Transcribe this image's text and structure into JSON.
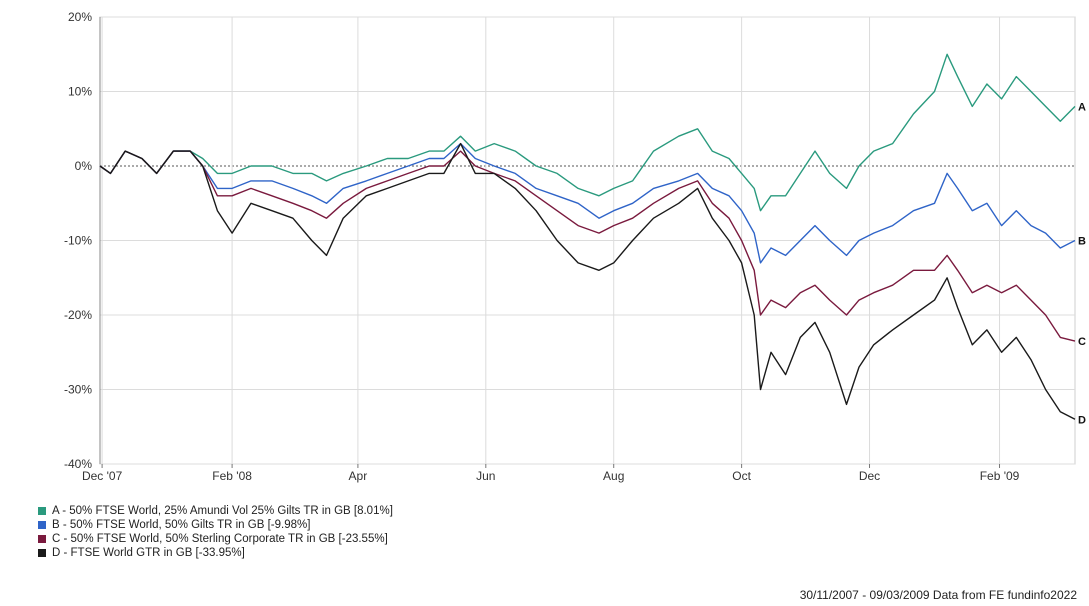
{
  "chart_data": {
    "type": "line",
    "ylim": [
      -40,
      20
    ],
    "y_ticks": [
      20,
      10,
      0,
      -10,
      -20,
      -30,
      -40
    ],
    "y_tick_labels": [
      "20%",
      "10%",
      "0%",
      "-10%",
      "-20%",
      "-30%",
      "-40%"
    ],
    "x_range": [
      "2007-11-30",
      "2009-03-09"
    ],
    "x_ticks": [
      {
        "label": "Dec '07",
        "date": "2007-12-01"
      },
      {
        "label": "Feb '08",
        "date": "2008-02-01"
      },
      {
        "label": "Apr",
        "date": "2008-04-01"
      },
      {
        "label": "Jun",
        "date": "2008-06-01"
      },
      {
        "label": "Aug",
        "date": "2008-08-01"
      },
      {
        "label": "Oct",
        "date": "2008-10-01"
      },
      {
        "label": "Dec",
        "date": "2008-12-01"
      },
      {
        "label": "Feb '09",
        "date": "2009-02-01"
      }
    ],
    "grid": true,
    "zero_line": true,
    "series": [
      {
        "name": "A - 50% FTSE World, 25% Amundi Vol 25% Gilts TR in GB [8.01%]",
        "end_label": "A",
        "color": "#2a9a7e",
        "points": [
          [
            "2007-11-30",
            0
          ],
          [
            "2007-12-05",
            -1
          ],
          [
            "2007-12-12",
            2
          ],
          [
            "2007-12-20",
            1
          ],
          [
            "2007-12-27",
            -1
          ],
          [
            "2008-01-04",
            2
          ],
          [
            "2008-01-12",
            2
          ],
          [
            "2008-01-18",
            1
          ],
          [
            "2008-01-25",
            -1
          ],
          [
            "2008-02-01",
            -1
          ],
          [
            "2008-02-10",
            0
          ],
          [
            "2008-02-20",
            0
          ],
          [
            "2008-03-01",
            -1
          ],
          [
            "2008-03-10",
            -1
          ],
          [
            "2008-03-17",
            -2
          ],
          [
            "2008-03-25",
            -1
          ],
          [
            "2008-04-05",
            0
          ],
          [
            "2008-04-15",
            1
          ],
          [
            "2008-04-25",
            1
          ],
          [
            "2008-05-05",
            2
          ],
          [
            "2008-05-12",
            2
          ],
          [
            "2008-05-20",
            4
          ],
          [
            "2008-05-27",
            2
          ],
          [
            "2008-06-05",
            3
          ],
          [
            "2008-06-15",
            2
          ],
          [
            "2008-06-25",
            0
          ],
          [
            "2008-07-05",
            -1
          ],
          [
            "2008-07-15",
            -3
          ],
          [
            "2008-07-25",
            -4
          ],
          [
            "2008-08-01",
            -3
          ],
          [
            "2008-08-10",
            -2
          ],
          [
            "2008-08-20",
            2
          ],
          [
            "2008-09-01",
            4
          ],
          [
            "2008-09-10",
            5
          ],
          [
            "2008-09-17",
            2
          ],
          [
            "2008-09-25",
            1
          ],
          [
            "2008-10-01",
            -1
          ],
          [
            "2008-10-07",
            -3
          ],
          [
            "2008-10-10",
            -6
          ],
          [
            "2008-10-15",
            -4
          ],
          [
            "2008-10-22",
            -4
          ],
          [
            "2008-10-29",
            -1
          ],
          [
            "2008-11-05",
            2
          ],
          [
            "2008-11-12",
            -1
          ],
          [
            "2008-11-20",
            -3
          ],
          [
            "2008-11-26",
            0
          ],
          [
            "2008-12-03",
            2
          ],
          [
            "2008-12-12",
            3
          ],
          [
            "2008-12-22",
            7
          ],
          [
            "2009-01-01",
            10
          ],
          [
            "2009-01-07",
            15
          ],
          [
            "2009-01-12",
            12
          ],
          [
            "2009-01-19",
            8
          ],
          [
            "2009-01-26",
            11
          ],
          [
            "2009-02-02",
            9
          ],
          [
            "2009-02-09",
            12
          ],
          [
            "2009-02-16",
            10
          ],
          [
            "2009-02-23",
            8
          ],
          [
            "2009-03-02",
            6
          ],
          [
            "2009-03-09",
            8
          ]
        ]
      },
      {
        "name": "B - 50% FTSE World, 50% Gilts TR in GB [-9.98%]",
        "end_label": "B",
        "color": "#2f64c8",
        "points": [
          [
            "2007-11-30",
            0
          ],
          [
            "2007-12-05",
            -1
          ],
          [
            "2007-12-12",
            2
          ],
          [
            "2007-12-20",
            1
          ],
          [
            "2007-12-27",
            -1
          ],
          [
            "2008-01-04",
            2
          ],
          [
            "2008-01-12",
            2
          ],
          [
            "2008-01-18",
            0
          ],
          [
            "2008-01-25",
            -3
          ],
          [
            "2008-02-01",
            -3
          ],
          [
            "2008-02-10",
            -2
          ],
          [
            "2008-02-20",
            -2
          ],
          [
            "2008-03-01",
            -3
          ],
          [
            "2008-03-10",
            -4
          ],
          [
            "2008-03-17",
            -5
          ],
          [
            "2008-03-25",
            -3
          ],
          [
            "2008-04-05",
            -2
          ],
          [
            "2008-04-15",
            -1
          ],
          [
            "2008-04-25",
            0
          ],
          [
            "2008-05-05",
            1
          ],
          [
            "2008-05-12",
            1
          ],
          [
            "2008-05-20",
            3
          ],
          [
            "2008-05-27",
            1
          ],
          [
            "2008-06-05",
            0
          ],
          [
            "2008-06-15",
            -1
          ],
          [
            "2008-06-25",
            -3
          ],
          [
            "2008-07-05",
            -4
          ],
          [
            "2008-07-15",
            -5
          ],
          [
            "2008-07-25",
            -7
          ],
          [
            "2008-08-01",
            -6
          ],
          [
            "2008-08-10",
            -5
          ],
          [
            "2008-08-20",
            -3
          ],
          [
            "2008-09-01",
            -2
          ],
          [
            "2008-09-10",
            -1
          ],
          [
            "2008-09-17",
            -3
          ],
          [
            "2008-09-25",
            -4
          ],
          [
            "2008-10-01",
            -6
          ],
          [
            "2008-10-07",
            -9
          ],
          [
            "2008-10-10",
            -13
          ],
          [
            "2008-10-15",
            -11
          ],
          [
            "2008-10-22",
            -12
          ],
          [
            "2008-10-29",
            -10
          ],
          [
            "2008-11-05",
            -8
          ],
          [
            "2008-11-12",
            -10
          ],
          [
            "2008-11-20",
            -12
          ],
          [
            "2008-11-26",
            -10
          ],
          [
            "2008-12-03",
            -9
          ],
          [
            "2008-12-12",
            -8
          ],
          [
            "2008-12-22",
            -6
          ],
          [
            "2009-01-01",
            -5
          ],
          [
            "2009-01-07",
            -1
          ],
          [
            "2009-01-12",
            -3
          ],
          [
            "2009-01-19",
            -6
          ],
          [
            "2009-01-26",
            -5
          ],
          [
            "2009-02-02",
            -8
          ],
          [
            "2009-02-09",
            -6
          ],
          [
            "2009-02-16",
            -8
          ],
          [
            "2009-02-23",
            -9
          ],
          [
            "2009-03-02",
            -11
          ],
          [
            "2009-03-09",
            -10
          ]
        ]
      },
      {
        "name": "C - 50% FTSE World, 50% Sterling Corporate TR in GB [-23.55%]",
        "end_label": "C",
        "color": "#7a1a3e",
        "points": [
          [
            "2007-11-30",
            0
          ],
          [
            "2007-12-05",
            -1
          ],
          [
            "2007-12-12",
            2
          ],
          [
            "2007-12-20",
            1
          ],
          [
            "2007-12-27",
            -1
          ],
          [
            "2008-01-04",
            2
          ],
          [
            "2008-01-12",
            2
          ],
          [
            "2008-01-18",
            0
          ],
          [
            "2008-01-25",
            -4
          ],
          [
            "2008-02-01",
            -4
          ],
          [
            "2008-02-10",
            -3
          ],
          [
            "2008-02-20",
            -4
          ],
          [
            "2008-03-01",
            -5
          ],
          [
            "2008-03-10",
            -6
          ],
          [
            "2008-03-17",
            -7
          ],
          [
            "2008-03-25",
            -5
          ],
          [
            "2008-04-05",
            -3
          ],
          [
            "2008-04-15",
            -2
          ],
          [
            "2008-04-25",
            -1
          ],
          [
            "2008-05-05",
            0
          ],
          [
            "2008-05-12",
            0
          ],
          [
            "2008-05-20",
            2
          ],
          [
            "2008-05-27",
            0
          ],
          [
            "2008-06-05",
            -1
          ],
          [
            "2008-06-15",
            -2
          ],
          [
            "2008-06-25",
            -4
          ],
          [
            "2008-07-05",
            -6
          ],
          [
            "2008-07-15",
            -8
          ],
          [
            "2008-07-25",
            -9
          ],
          [
            "2008-08-01",
            -8
          ],
          [
            "2008-08-10",
            -7
          ],
          [
            "2008-08-20",
            -5
          ],
          [
            "2008-09-01",
            -3
          ],
          [
            "2008-09-10",
            -2
          ],
          [
            "2008-09-17",
            -5
          ],
          [
            "2008-09-25",
            -7
          ],
          [
            "2008-10-01",
            -10
          ],
          [
            "2008-10-07",
            -14
          ],
          [
            "2008-10-10",
            -20
          ],
          [
            "2008-10-15",
            -18
          ],
          [
            "2008-10-22",
            -19
          ],
          [
            "2008-10-29",
            -17
          ],
          [
            "2008-11-05",
            -16
          ],
          [
            "2008-11-12",
            -18
          ],
          [
            "2008-11-20",
            -20
          ],
          [
            "2008-11-26",
            -18
          ],
          [
            "2008-12-03",
            -17
          ],
          [
            "2008-12-12",
            -16
          ],
          [
            "2008-12-22",
            -14
          ],
          [
            "2009-01-01",
            -14
          ],
          [
            "2009-01-07",
            -12
          ],
          [
            "2009-01-12",
            -14
          ],
          [
            "2009-01-19",
            -17
          ],
          [
            "2009-01-26",
            -16
          ],
          [
            "2009-02-02",
            -17
          ],
          [
            "2009-02-09",
            -16
          ],
          [
            "2009-02-16",
            -18
          ],
          [
            "2009-02-23",
            -20
          ],
          [
            "2009-03-02",
            -23
          ],
          [
            "2009-03-09",
            -23.5
          ]
        ]
      },
      {
        "name": "D - FTSE World GTR in GB [-33.95%]",
        "end_label": "D",
        "color": "#1a1a1a",
        "points": [
          [
            "2007-11-30",
            0
          ],
          [
            "2007-12-05",
            -1
          ],
          [
            "2007-12-12",
            2
          ],
          [
            "2007-12-20",
            1
          ],
          [
            "2007-12-27",
            -1
          ],
          [
            "2008-01-04",
            2
          ],
          [
            "2008-01-12",
            2
          ],
          [
            "2008-01-18",
            0
          ],
          [
            "2008-01-25",
            -6
          ],
          [
            "2008-02-01",
            -9
          ],
          [
            "2008-02-10",
            -5
          ],
          [
            "2008-02-20",
            -6
          ],
          [
            "2008-03-01",
            -7
          ],
          [
            "2008-03-10",
            -10
          ],
          [
            "2008-03-17",
            -12
          ],
          [
            "2008-03-25",
            -7
          ],
          [
            "2008-04-05",
            -4
          ],
          [
            "2008-04-15",
            -3
          ],
          [
            "2008-04-25",
            -2
          ],
          [
            "2008-05-05",
            -1
          ],
          [
            "2008-05-12",
            -1
          ],
          [
            "2008-05-20",
            3
          ],
          [
            "2008-05-27",
            -1
          ],
          [
            "2008-06-05",
            -1
          ],
          [
            "2008-06-15",
            -3
          ],
          [
            "2008-06-25",
            -6
          ],
          [
            "2008-07-05",
            -10
          ],
          [
            "2008-07-15",
            -13
          ],
          [
            "2008-07-25",
            -14
          ],
          [
            "2008-08-01",
            -13
          ],
          [
            "2008-08-10",
            -10
          ],
          [
            "2008-08-20",
            -7
          ],
          [
            "2008-09-01",
            -5
          ],
          [
            "2008-09-10",
            -3
          ],
          [
            "2008-09-17",
            -7
          ],
          [
            "2008-09-25",
            -10
          ],
          [
            "2008-10-01",
            -13
          ],
          [
            "2008-10-07",
            -20
          ],
          [
            "2008-10-10",
            -30
          ],
          [
            "2008-10-15",
            -25
          ],
          [
            "2008-10-22",
            -28
          ],
          [
            "2008-10-29",
            -23
          ],
          [
            "2008-11-05",
            -21
          ],
          [
            "2008-11-12",
            -25
          ],
          [
            "2008-11-20",
            -32
          ],
          [
            "2008-11-26",
            -27
          ],
          [
            "2008-12-03",
            -24
          ],
          [
            "2008-12-12",
            -22
          ],
          [
            "2008-12-22",
            -20
          ],
          [
            "2009-01-01",
            -18
          ],
          [
            "2009-01-07",
            -15
          ],
          [
            "2009-01-12",
            -19
          ],
          [
            "2009-01-19",
            -24
          ],
          [
            "2009-01-26",
            -22
          ],
          [
            "2009-02-02",
            -25
          ],
          [
            "2009-02-09",
            -23
          ],
          [
            "2009-02-16",
            -26
          ],
          [
            "2009-02-23",
            -30
          ],
          [
            "2009-03-02",
            -33
          ],
          [
            "2009-03-09",
            -34
          ]
        ]
      }
    ]
  },
  "legend": {
    "items": [
      {
        "label": "A - 50% FTSE World, 25% Amundi Vol 25% Gilts TR in GB [8.01%]",
        "color": "#2a9a7e"
      },
      {
        "label": "B - 50% FTSE World, 50% Gilts TR in GB [-9.98%]",
        "color": "#2f64c8"
      },
      {
        "label": "C - 50% FTSE World, 50% Sterling Corporate TR in GB [-23.55%]",
        "color": "#7a1a3e"
      },
      {
        "label": "D - FTSE World GTR in GB [-33.95%]",
        "color": "#1a1a1a"
      }
    ]
  },
  "footer": {
    "text": "30/11/2007 - 09/03/2009 Data from FE fundinfo2022"
  }
}
